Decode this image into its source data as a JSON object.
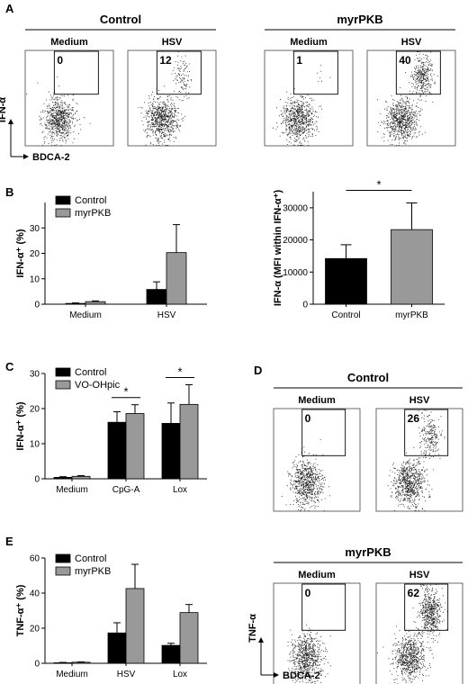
{
  "panels": {
    "A": {
      "letter": "A",
      "groups": [
        {
          "title": "Control",
          "plots": [
            {
              "label": "Medium",
              "value": "0"
            },
            {
              "label": "HSV",
              "value": "12"
            }
          ]
        },
        {
          "title": "myrPKB",
          "plots": [
            {
              "label": "Medium",
              "value": "1"
            },
            {
              "label": "HSV",
              "value": "40"
            }
          ]
        }
      ],
      "y_axis_label": "IFN-α",
      "x_axis_label": "BDCA-2"
    },
    "B": {
      "letter": "B"
    },
    "C": {
      "letter": "C"
    },
    "D": {
      "letter": "D",
      "groups": [
        {
          "title": "Control",
          "plots": [
            {
              "label": "Medium",
              "value": "0"
            },
            {
              "label": "HSV",
              "value": "26"
            }
          ]
        },
        {
          "title": "myrPKB",
          "plots": [
            {
              "label": "Medium",
              "value": "0"
            },
            {
              "label": "HSV",
              "value": "62"
            }
          ]
        }
      ],
      "y_axis_label": "TNF-α",
      "x_axis_label": "BDCA-2"
    },
    "E": {
      "letter": "E"
    }
  },
  "chart_data": [
    {
      "id": "B-left",
      "type": "bar",
      "categories": [
        "Medium",
        "HSV"
      ],
      "series": [
        {
          "name": "Control",
          "values": [
            0.3,
            5.8
          ],
          "errors": [
            0.2,
            3.0
          ],
          "color": "#000000"
        },
        {
          "name": "myrPKB",
          "values": [
            1.0,
            20.3
          ],
          "errors": [
            0.3,
            11.0
          ],
          "color": "#999999"
        }
      ],
      "ylabel": "IFN-α⁺ (%)",
      "ylim": [
        0,
        40
      ],
      "yticks": [
        "0",
        "10",
        "20",
        "30"
      ],
      "legend": "top-left",
      "significance": []
    },
    {
      "id": "B-right",
      "type": "bar",
      "categories": [
        "Control",
        "myrPKB"
      ],
      "series": [
        {
          "values": [
            14200,
            23200
          ],
          "errors": [
            4300,
            8300
          ],
          "colors": [
            "#000000",
            "#999999"
          ]
        }
      ],
      "ylabel": "IFN-α (MFI within IFN-α⁺)",
      "ylim": [
        0,
        35000
      ],
      "yticks": [
        "0",
        "10000",
        "20000",
        "30000"
      ],
      "significance": [
        {
          "text": "*",
          "between": [
            0,
            1
          ]
        }
      ]
    },
    {
      "id": "C",
      "type": "bar",
      "categories": [
        "Medium",
        "CpG-A",
        "Lox"
      ],
      "series": [
        {
          "name": "Control",
          "values": [
            0.4,
            16.1,
            15.8
          ],
          "errors": [
            0.2,
            3.0,
            5.8
          ],
          "color": "#000000"
        },
        {
          "name": "VO-OHpic",
          "values": [
            0.7,
            18.6,
            21.2
          ],
          "errors": [
            0.2,
            2.5,
            5.6
          ],
          "color": "#999999"
        }
      ],
      "ylabel": "IFN-α⁺ (%)",
      "ylim": [
        0,
        30
      ],
      "yticks": [
        "0",
        "10",
        "20",
        "30"
      ],
      "legend": "top-left",
      "significance": [
        {
          "text": "*",
          "category": 1
        },
        {
          "text": "*",
          "category": 2
        }
      ]
    },
    {
      "id": "E",
      "type": "bar",
      "categories": [
        "Medium",
        "HSV",
        "Lox"
      ],
      "series": [
        {
          "name": "Control",
          "values": [
            0.3,
            17.3,
            10.2
          ],
          "errors": [
            0.2,
            5.8,
            1.2
          ],
          "color": "#000000"
        },
        {
          "name": "myrPKB",
          "values": [
            0.6,
            42.6,
            28.9
          ],
          "errors": [
            0.2,
            13.8,
            4.6
          ],
          "color": "#999999"
        }
      ],
      "ylabel": "TNF-α⁺ (%)",
      "ylim": [
        0,
        60
      ],
      "yticks": [
        "0",
        "20",
        "40",
        "60"
      ],
      "legend": "top-left",
      "significance": []
    }
  ]
}
